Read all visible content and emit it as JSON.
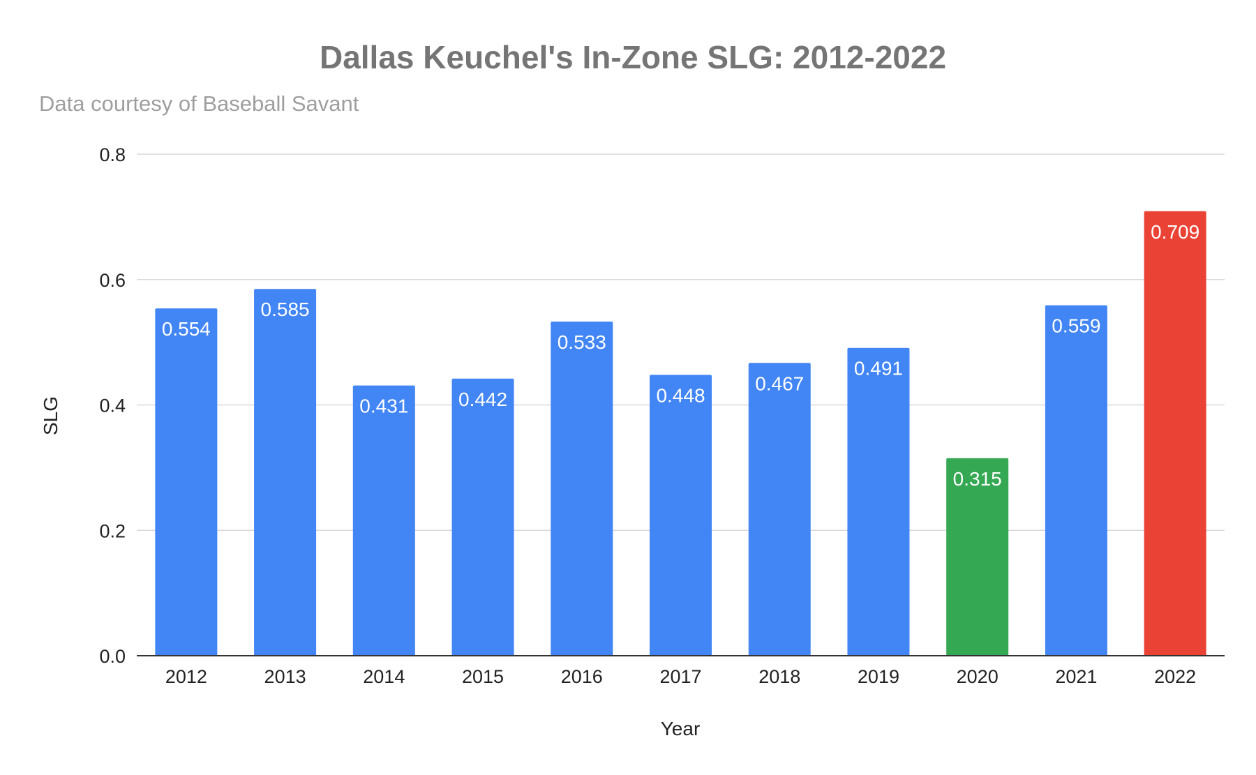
{
  "chart_data": {
    "type": "bar",
    "title": "Dallas Keuchel's In-Zone SLG: 2012-2022",
    "subtitle": "Data courtesy of Baseball Savant",
    "xlabel": "Year",
    "ylabel": "SLG",
    "categories": [
      "2012",
      "2013",
      "2014",
      "2015",
      "2016",
      "2017",
      "2018",
      "2019",
      "2020",
      "2021",
      "2022"
    ],
    "values": [
      0.554,
      0.585,
      0.431,
      0.442,
      0.533,
      0.448,
      0.467,
      0.491,
      0.315,
      0.559,
      0.709
    ],
    "data_labels": [
      "0.554",
      "0.585",
      "0.431",
      "0.442",
      "0.533",
      "0.448",
      "0.467",
      "0.491",
      "0.315",
      "0.559",
      "0.709"
    ],
    "bar_colors": [
      "#4285f4",
      "#4285f4",
      "#4285f4",
      "#4285f4",
      "#4285f4",
      "#4285f4",
      "#4285f4",
      "#4285f4",
      "#34a853",
      "#4285f4",
      "#ea4335"
    ],
    "ylim": [
      0,
      0.8
    ],
    "yticks": [
      0,
      0.2,
      0.4,
      0.6,
      0.8
    ],
    "ytick_labels": [
      "0.0",
      "0.2",
      "0.4",
      "0.6",
      "0.8"
    ],
    "grid": true,
    "legend": "none"
  }
}
